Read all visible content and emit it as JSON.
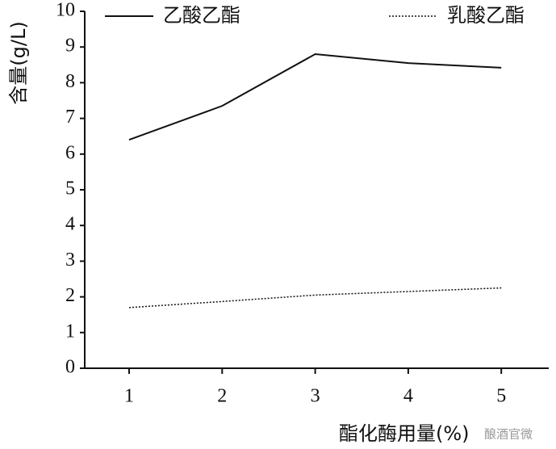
{
  "chart_data": {
    "type": "line",
    "x_label": "酯化酶用量(%)",
    "y_label": "含量(g/L)",
    "categories": [
      "1",
      "2",
      "3",
      "4",
      "5"
    ],
    "series": [
      {
        "name": "乙酸乙酯",
        "color": "#111111",
        "dash": "solid",
        "values": [
          6.4,
          7.35,
          8.8,
          8.55,
          8.42
        ]
      },
      {
        "name": "乳酸乙酯",
        "color": "#111111",
        "dash": "dotted",
        "values": [
          1.7,
          1.87,
          2.05,
          2.15,
          2.25
        ]
      }
    ],
    "ylim": [
      0,
      10
    ],
    "yticks": [
      0,
      1,
      2,
      3,
      4,
      5,
      6,
      7,
      8,
      9,
      10
    ]
  },
  "watermark": "酿酒官微"
}
